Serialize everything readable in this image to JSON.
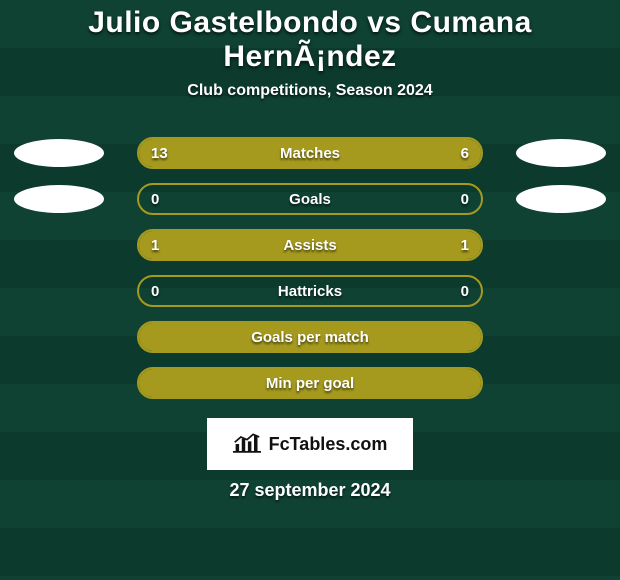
{
  "colors": {
    "stripeA": "#0f4233",
    "stripeB": "#0c3b2e",
    "accent": "#a59a1e",
    "badge": "#ffffff",
    "text": "#ffffff"
  },
  "title": "Julio Gastelbondo vs Cumana HernÃ¡ndez",
  "subtitle": "Club competitions, Season 2024",
  "brand_text": "FcTables.com",
  "date": "27 september 2024",
  "bar": {
    "outer_width": 346,
    "height": 32,
    "border_radius": 20,
    "border_width": 2
  },
  "rows": [
    {
      "label": "Matches",
      "left_val": "13",
      "right_val": "6",
      "left_num": 13,
      "right_num": 6,
      "show_badge": true,
      "show_values": true
    },
    {
      "label": "Goals",
      "left_val": "0",
      "right_val": "0",
      "left_num": 0,
      "right_num": 0,
      "show_badge": true,
      "show_values": true
    },
    {
      "label": "Assists",
      "left_val": "1",
      "right_val": "1",
      "left_num": 1,
      "right_num": 1,
      "show_badge": false,
      "show_values": true
    },
    {
      "label": "Hattricks",
      "left_val": "0",
      "right_val": "0",
      "left_num": 0,
      "right_num": 0,
      "show_badge": false,
      "show_values": true
    },
    {
      "label": "Goals per match",
      "left_val": "",
      "right_val": "",
      "left_num": 1,
      "right_num": 0,
      "show_badge": false,
      "show_values": false,
      "force_full": true
    },
    {
      "label": "Min per goal",
      "left_val": "",
      "right_val": "",
      "left_num": 1,
      "right_num": 0,
      "show_badge": false,
      "show_values": false,
      "force_full": true
    }
  ]
}
